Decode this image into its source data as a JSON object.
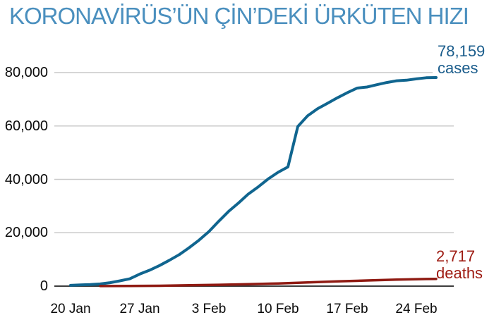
{
  "title": "KORONAVİRÜS’ÜN ÇİN’DEKİ ÜRKÜTEN HIZI",
  "colors": {
    "title": "#4a8fbe",
    "background": "#ffffff",
    "gridline": "#c9c9c9",
    "axis_line": "#3d3d3d",
    "tick_text": "#0a0a0a",
    "cases_line": "#10658f",
    "deaths_line": "#8f1a12",
    "cases_label": "#1b5d8c",
    "deaths_label": "#9e1b12"
  },
  "chart_data": {
    "type": "line",
    "title": "KORONAVİRÜS’ÜN ÇİN’DEKİ ÜRKÜTEN HIZI",
    "xlabel": "",
    "ylabel": "",
    "ylim": [
      0,
      80000
    ],
    "grid": true,
    "legend_position": "end-of-line annotations",
    "x_unit": "days since 20 Jan 2020",
    "y_ticks": [
      {
        "value": 0,
        "label": "0"
      },
      {
        "value": 20000,
        "label": "20,000"
      },
      {
        "value": 40000,
        "label": "40,000"
      },
      {
        "value": 60000,
        "label": "60,000"
      },
      {
        "value": 80000,
        "label": "80,000"
      }
    ],
    "x_ticks": [
      {
        "day": 0,
        "label": "20 Jan"
      },
      {
        "day": 7,
        "label": "27 Jan"
      },
      {
        "day": 14,
        "label": "3 Feb"
      },
      {
        "day": 21,
        "label": "10 Feb"
      },
      {
        "day": 28,
        "label": "17 Feb"
      },
      {
        "day": 35,
        "label": "24 Feb"
      }
    ],
    "series": [
      {
        "name": "cases",
        "color": "#10658f",
        "stroke_width": 4,
        "points": [
          [
            0,
            291
          ],
          [
            1,
            440
          ],
          [
            2,
            571
          ],
          [
            3,
            830
          ],
          [
            4,
            1287
          ],
          [
            5,
            1975
          ],
          [
            6,
            2744
          ],
          [
            7,
            4515
          ],
          [
            8,
            5974
          ],
          [
            9,
            7711
          ],
          [
            10,
            9692
          ],
          [
            11,
            11791
          ],
          [
            12,
            14380
          ],
          [
            13,
            17205
          ],
          [
            14,
            20438
          ],
          [
            15,
            24324
          ],
          [
            16,
            28018
          ],
          [
            17,
            31161
          ],
          [
            18,
            34546
          ],
          [
            19,
            37198
          ],
          [
            20,
            40171
          ],
          [
            21,
            42638
          ],
          [
            22,
            44653
          ],
          [
            23,
            59804
          ],
          [
            24,
            63851
          ],
          [
            25,
            66492
          ],
          [
            26,
            68500
          ],
          [
            27,
            70548
          ],
          [
            28,
            72436
          ],
          [
            29,
            74185
          ],
          [
            30,
            74576
          ],
          [
            31,
            75465
          ],
          [
            32,
            76288
          ],
          [
            33,
            76936
          ],
          [
            34,
            77150
          ],
          [
            35,
            77658
          ],
          [
            36,
            78064
          ],
          [
            37,
            78159
          ]
        ]
      },
      {
        "name": "deaths",
        "color": "#8f1a12",
        "stroke_width": 3.5,
        "points": [
          [
            3,
            25
          ],
          [
            6,
            80
          ],
          [
            9,
            132
          ],
          [
            12,
            304
          ],
          [
            15,
            490
          ],
          [
            18,
            722
          ],
          [
            21,
            1016
          ],
          [
            24,
            1380
          ],
          [
            27,
            1770
          ],
          [
            30,
            2118
          ],
          [
            33,
            2442
          ],
          [
            36,
            2663
          ],
          [
            37,
            2717
          ]
        ]
      }
    ],
    "annotations": [
      {
        "series": "cases",
        "value_label": "78,159",
        "name_label": "cases",
        "color": "#1b5d8c"
      },
      {
        "series": "deaths",
        "value_label": "2,717",
        "name_label": "deaths",
        "color": "#9e1b12"
      }
    ]
  }
}
